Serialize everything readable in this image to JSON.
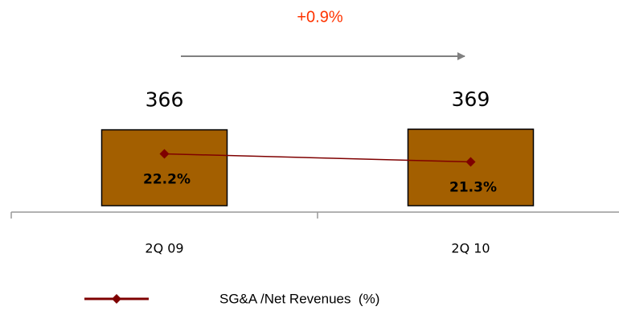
{
  "chart_data": {
    "type": "bar",
    "annotation": "+0.9%",
    "categories": [
      "2Q 09",
      "2Q 10"
    ],
    "series": [
      {
        "type": "bar",
        "color": "#a35f00",
        "values": [
          366,
          369
        ]
      },
      {
        "type": "line",
        "name": "SG&A /Net Revenues  (%)",
        "color": "#7f0000",
        "axis": "y2",
        "values": [
          22.2,
          21.3
        ],
        "value_labels": [
          "22.2%",
          "21.3%"
        ]
      }
    ],
    "ylim": [
      0,
      500
    ],
    "y2lim": [
      16.4,
      28
    ],
    "legend": "bottom"
  }
}
